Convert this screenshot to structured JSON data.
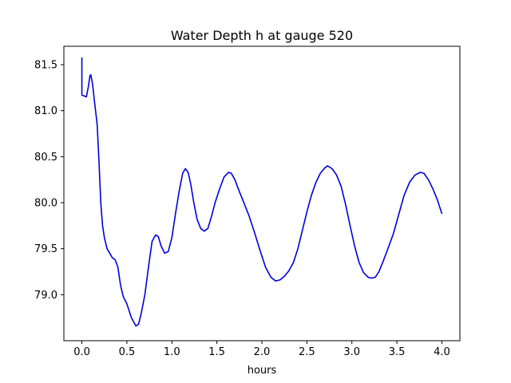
{
  "chart_data": {
    "type": "line",
    "title": "Water Depth h at gauge 520",
    "xlabel": "hours",
    "ylabel": "",
    "xlim": [
      -0.2,
      4.2
    ],
    "ylim": [
      78.5,
      81.7
    ],
    "grid": false,
    "legend": "none",
    "xticks": [
      0.0,
      0.5,
      1.0,
      1.5,
      2.0,
      2.5,
      3.0,
      3.5,
      4.0
    ],
    "xtick_labels": [
      "0.0",
      "0.5",
      "1.0",
      "1.5",
      "2.0",
      "2.5",
      "3.0",
      "3.5",
      "4.0"
    ],
    "yticks": [
      79.0,
      79.5,
      80.0,
      80.5,
      81.0,
      81.5
    ],
    "ytick_labels": [
      "79.0",
      "79.5",
      "80.0",
      "80.5",
      "81.0",
      "81.5"
    ],
    "series": [
      {
        "color": "#0000dd",
        "x": [
          0.0,
          0.0,
          0.0,
          0.05,
          0.07,
          0.09,
          0.1,
          0.12,
          0.14,
          0.17,
          0.19,
          0.21,
          0.23,
          0.25,
          0.28,
          0.31,
          0.34,
          0.37,
          0.4,
          0.43,
          0.46,
          0.5,
          0.55,
          0.6,
          0.63,
          0.66,
          0.7,
          0.74,
          0.78,
          0.82,
          0.85,
          0.88,
          0.92,
          0.96,
          1.0,
          1.04,
          1.08,
          1.12,
          1.15,
          1.18,
          1.21,
          1.24,
          1.28,
          1.32,
          1.36,
          1.4,
          1.44,
          1.48,
          1.53,
          1.58,
          1.63,
          1.66,
          1.7,
          1.75,
          1.8,
          1.86,
          1.92,
          1.98,
          2.04,
          2.1,
          2.15,
          2.2,
          2.25,
          2.3,
          2.35,
          2.4,
          2.45,
          2.5,
          2.55,
          2.6,
          2.65,
          2.7,
          2.73,
          2.78,
          2.83,
          2.88,
          2.93,
          2.98,
          3.03,
          3.08,
          3.13,
          3.18,
          3.22,
          3.26,
          3.3,
          3.35,
          3.4,
          3.46,
          3.52,
          3.58,
          3.64,
          3.7,
          3.76,
          3.8,
          3.85,
          3.9,
          3.95,
          4.0
        ],
        "y": [
          81.58,
          81.18,
          81.17,
          81.15,
          81.25,
          81.38,
          81.39,
          81.28,
          81.1,
          80.85,
          80.45,
          80.0,
          79.75,
          79.62,
          79.5,
          79.45,
          79.4,
          79.38,
          79.3,
          79.1,
          78.98,
          78.9,
          78.75,
          78.66,
          78.68,
          78.8,
          79.0,
          79.3,
          79.58,
          79.65,
          79.63,
          79.53,
          79.45,
          79.47,
          79.62,
          79.88,
          80.12,
          80.32,
          80.37,
          80.33,
          80.2,
          80.02,
          79.82,
          79.72,
          79.69,
          79.72,
          79.85,
          80.0,
          80.15,
          80.28,
          80.33,
          80.32,
          80.25,
          80.12,
          80.0,
          79.85,
          79.67,
          79.48,
          79.3,
          79.19,
          79.15,
          79.16,
          79.2,
          79.26,
          79.35,
          79.5,
          79.7,
          79.9,
          80.08,
          80.22,
          80.32,
          80.38,
          80.4,
          80.37,
          80.3,
          80.18,
          79.98,
          79.75,
          79.53,
          79.35,
          79.24,
          79.19,
          79.18,
          79.19,
          79.25,
          79.37,
          79.5,
          79.66,
          79.87,
          80.08,
          80.22,
          80.3,
          80.33,
          80.32,
          80.25,
          80.15,
          80.03,
          79.88
        ]
      }
    ]
  }
}
